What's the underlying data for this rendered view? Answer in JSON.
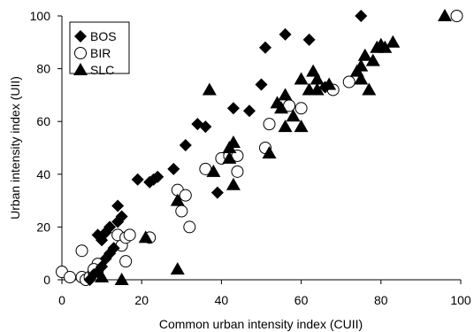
{
  "chart_data": {
    "type": "scatter",
    "xlabel": "Common urban intensity index (CUII)",
    "ylabel": "Urban intensity index (UII)",
    "xlim": [
      0,
      100
    ],
    "ylim": [
      0,
      100
    ],
    "xticks": [
      "0",
      "20",
      "40",
      "60",
      "80",
      "100"
    ],
    "yticks": [
      "0",
      "20",
      "40",
      "60",
      "80",
      "100"
    ],
    "grid": false,
    "legend_position": "top-left",
    "series": [
      {
        "name": "BOS",
        "marker": "diamond",
        "color": "#000000",
        "points": [
          [
            7,
            0
          ],
          [
            8,
            2
          ],
          [
            9,
            3
          ],
          [
            10,
            5
          ],
          [
            11,
            8
          ],
          [
            12,
            10
          ],
          [
            13,
            12
          ],
          [
            9,
            17
          ],
          [
            10,
            15
          ],
          [
            11,
            18
          ],
          [
            12,
            20
          ],
          [
            14,
            22
          ],
          [
            15,
            24
          ],
          [
            14,
            28
          ],
          [
            19,
            38
          ],
          [
            22,
            37
          ],
          [
            23,
            38
          ],
          [
            24,
            39
          ],
          [
            28,
            42
          ],
          [
            31,
            51
          ],
          [
            34,
            59
          ],
          [
            36,
            58
          ],
          [
            39,
            33
          ],
          [
            43,
            65
          ],
          [
            47,
            64
          ],
          [
            50,
            74
          ],
          [
            51,
            88
          ],
          [
            56,
            93
          ],
          [
            62,
            91
          ],
          [
            66,
            73
          ],
          [
            75,
            100
          ]
        ]
      },
      {
        "name": "BIR",
        "marker": "circle-open",
        "color": "#000000",
        "points": [
          [
            0,
            3
          ],
          [
            2,
            1
          ],
          [
            5,
            1
          ],
          [
            5,
            11
          ],
          [
            6,
            0
          ],
          [
            7,
            1
          ],
          [
            8,
            3
          ],
          [
            9,
            6
          ],
          [
            8,
            4
          ],
          [
            14,
            17
          ],
          [
            15,
            13
          ],
          [
            16,
            7
          ],
          [
            16,
            16
          ],
          [
            17,
            17
          ],
          [
            22,
            16
          ],
          [
            29,
            34
          ],
          [
            30,
            26
          ],
          [
            31,
            32
          ],
          [
            32,
            20
          ],
          [
            36,
            42
          ],
          [
            40,
            46
          ],
          [
            42,
            47
          ],
          [
            44,
            41
          ],
          [
            44,
            47
          ],
          [
            51,
            50
          ],
          [
            52,
            59
          ],
          [
            57,
            66
          ],
          [
            60,
            65
          ],
          [
            68,
            72
          ],
          [
            72,
            75
          ],
          [
            99,
            100
          ]
        ]
      },
      {
        "name": "SLC",
        "marker": "triangle",
        "color": "#000000",
        "points": [
          [
            10,
            1
          ],
          [
            15,
            0
          ],
          [
            21,
            16
          ],
          [
            29,
            4
          ],
          [
            29,
            30
          ],
          [
            37,
            72
          ],
          [
            38,
            41
          ],
          [
            42,
            50
          ],
          [
            42,
            46
          ],
          [
            43,
            36
          ],
          [
            43,
            52
          ],
          [
            52,
            48
          ],
          [
            54,
            67
          ],
          [
            55,
            65
          ],
          [
            56,
            70
          ],
          [
            56,
            58
          ],
          [
            58,
            62
          ],
          [
            60,
            58
          ],
          [
            60,
            76
          ],
          [
            62,
            72
          ],
          [
            63,
            79
          ],
          [
            64,
            76
          ],
          [
            64,
            72
          ],
          [
            67,
            74
          ],
          [
            74,
            79
          ],
          [
            75,
            76
          ],
          [
            75,
            81
          ],
          [
            76,
            85
          ],
          [
            77,
            72
          ],
          [
            78,
            83
          ],
          [
            79,
            88
          ],
          [
            80,
            89
          ],
          [
            81,
            88
          ],
          [
            83,
            90
          ],
          [
            96,
            100
          ]
        ]
      }
    ]
  }
}
